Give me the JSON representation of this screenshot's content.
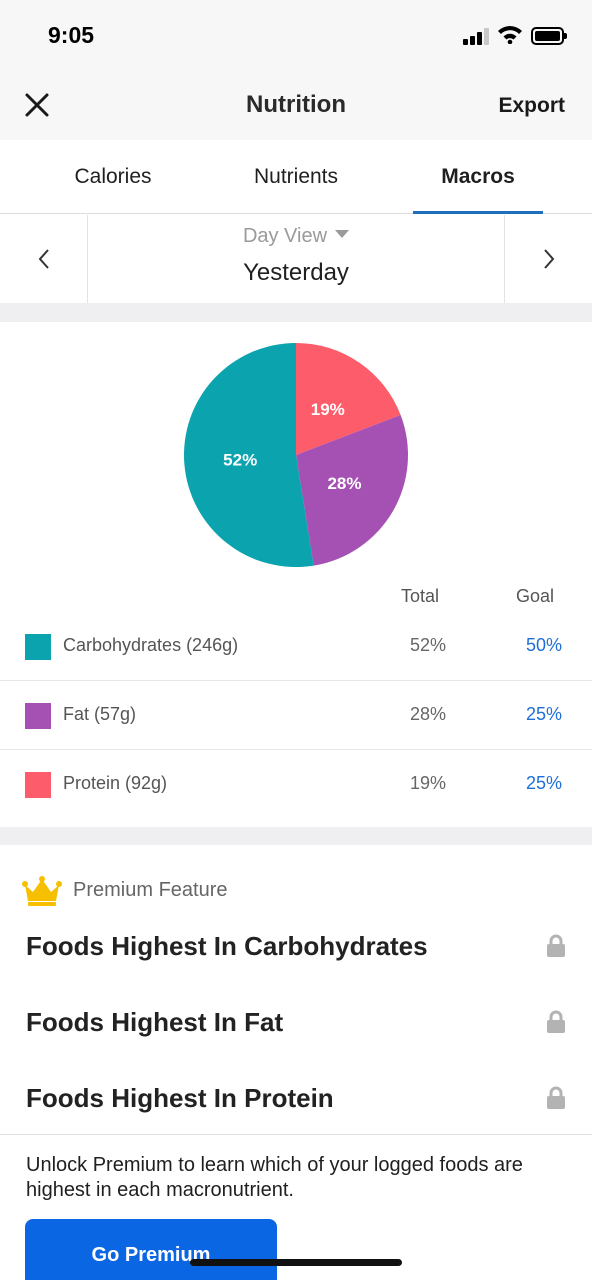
{
  "status_bar": {
    "time": "9:05"
  },
  "nav": {
    "title": "Nutrition",
    "export_label": "Export",
    "close_icon": "close-icon"
  },
  "tabs": [
    {
      "label": "Calories",
      "active": false
    },
    {
      "label": "Nutrients",
      "active": false
    },
    {
      "label": "Macros",
      "active": true
    }
  ],
  "day_nav": {
    "view_label": "Day View",
    "day_label": "Yesterday"
  },
  "colors": {
    "accent": "#1e6fc0",
    "link": "#1e6fd9",
    "button": "#0b66e4",
    "carbs": "#0aa3ae",
    "fat": "#a551b4",
    "protein": "#fd5c6b",
    "premium_crown": "#f6c000"
  },
  "chart_data": {
    "type": "pie",
    "slices": [
      {
        "label": "Protein",
        "value": 19,
        "display": "19%",
        "color": "#fd5c6b"
      },
      {
        "label": "Fat",
        "value": 28,
        "display": "28%",
        "color": "#a551b4"
      },
      {
        "label": "Carbohydrates",
        "value": 52,
        "display": "52%",
        "color": "#0aa3ae"
      }
    ]
  },
  "macro_table": {
    "total_header": "Total",
    "goal_header": "Goal",
    "rows": [
      {
        "name": "Carbohydrates (246g)",
        "total": "52%",
        "goal": "50%",
        "color": "#0aa3ae"
      },
      {
        "name": "Fat (57g)",
        "total": "28%",
        "goal": "25%",
        "color": "#a551b4"
      },
      {
        "name": "Protein (92g)",
        "total": "19%",
        "goal": "25%",
        "color": "#fd5c6b"
      }
    ]
  },
  "premium": {
    "label": "Premium Feature",
    "items": [
      "Foods Highest In Carbohydrates",
      "Foods Highest In Fat",
      "Foods Highest In Protein"
    ],
    "unlock_text": "Unlock Premium to learn which of your logged foods are highest in each macronutrient.",
    "button_label": "Go Premium"
  }
}
